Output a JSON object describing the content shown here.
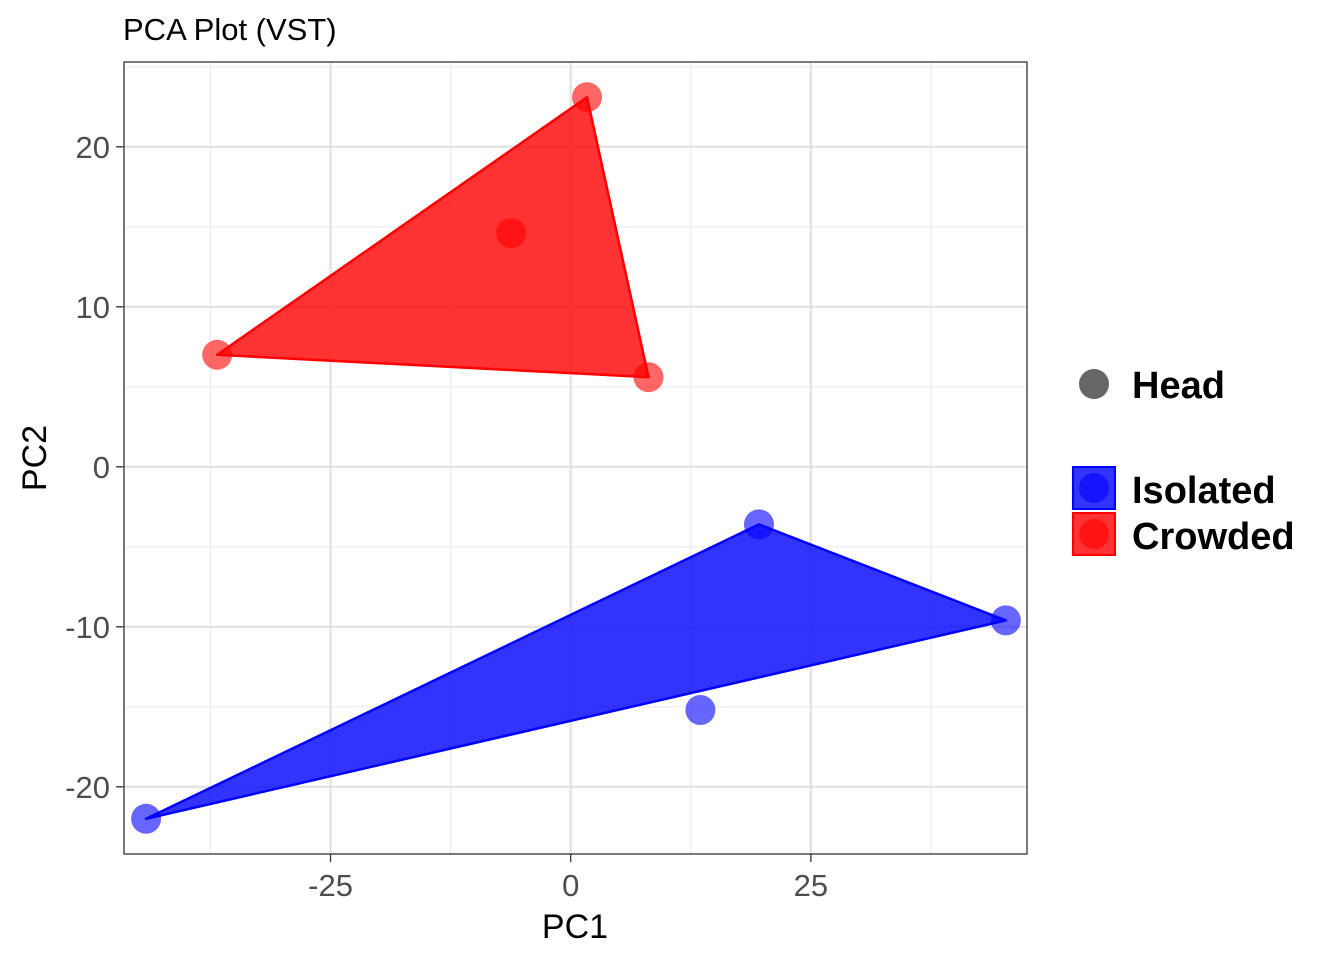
{
  "chart_data": {
    "type": "scatter",
    "title": "PCA Plot (VST)",
    "xlabel": "PC1",
    "ylabel": "PC2",
    "xlim": [
      -46.5,
      47.5
    ],
    "ylim": [
      -24.2,
      25.3
    ],
    "x_ticks": [
      -25,
      0,
      25
    ],
    "x_tick_labels": [
      "-25",
      "0",
      "25"
    ],
    "y_ticks": [
      -20,
      -10,
      0,
      10,
      20
    ],
    "y_tick_labels": [
      "-20",
      "-10",
      "0",
      "10",
      "20"
    ],
    "grid": true,
    "legend_position": "right",
    "shape_legend": {
      "label": "Head",
      "color": "#666666"
    },
    "series": [
      {
        "name": "Isolated",
        "color": "#0000ff",
        "points": [
          {
            "x": -44.2,
            "y": -22.0
          },
          {
            "x": 13.5,
            "y": -15.2
          },
          {
            "x": 19.6,
            "y": -3.6
          },
          {
            "x": 45.3,
            "y": -9.6
          }
        ],
        "hull": [
          {
            "x": -44.2,
            "y": -22.0
          },
          {
            "x": 19.6,
            "y": -3.6
          },
          {
            "x": 45.3,
            "y": -9.6
          }
        ]
      },
      {
        "name": "Crowded",
        "color": "#ff0000",
        "points": [
          {
            "x": -36.8,
            "y": 7.0
          },
          {
            "x": -6.2,
            "y": 14.6
          },
          {
            "x": 1.7,
            "y": 23.1
          },
          {
            "x": 8.1,
            "y": 5.6
          }
        ],
        "hull": [
          {
            "x": -36.8,
            "y": 7.0
          },
          {
            "x": 1.7,
            "y": 23.1
          },
          {
            "x": 8.1,
            "y": 5.6
          }
        ]
      }
    ]
  }
}
